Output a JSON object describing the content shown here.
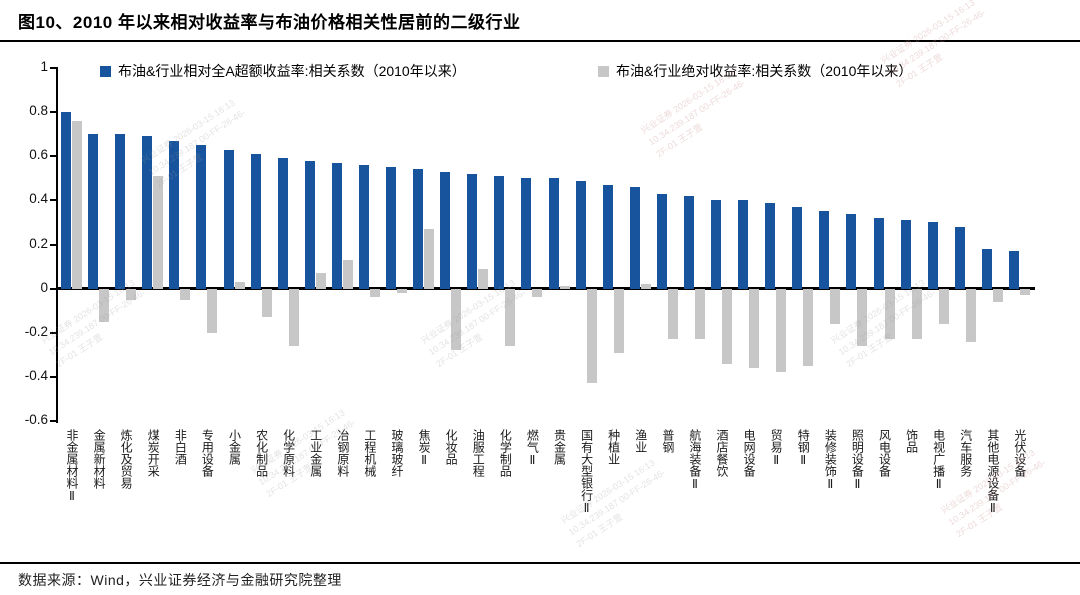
{
  "title": "图10、2010 年以来相对收益率与布油价格相关性居前的二级行业",
  "source_note": "数据来源：Wind，兴业证券经济与金融研究院整理",
  "watermark": {
    "text": "兴业证券 2026-03-15 16:13 10.34.239.187 00-FF-26-46-2F-01 王子萱"
  },
  "colors": {
    "relative_series": "#17549d",
    "absolute_series": "#c7c7c7",
    "axis": "#000000"
  },
  "chart_data": {
    "type": "bar",
    "title": "图10、2010 年以来相对收益率与布油价格相关性居前的二级行业",
    "xlabel": "",
    "ylabel": "",
    "ylim": [
      -0.6,
      1
    ],
    "yticks": [
      1,
      0.8,
      0.6,
      0.4,
      0.2,
      0,
      -0.2,
      -0.4,
      -0.6
    ],
    "grid": false,
    "legend_position": "top",
    "categories": [
      "非金属材料Ⅱ",
      "金属新材料",
      "炼化及贸易",
      "煤炭开采",
      "非白酒",
      "专用设备",
      "小金属",
      "农化制品",
      "化学原料",
      "工业金属",
      "冶钢原料",
      "工程机械",
      "玻璃玻纤",
      "焦炭Ⅱ",
      "化妆品",
      "油服工程",
      "化学制品",
      "燃气Ⅱ",
      "贵金属",
      "国有大型银行Ⅱ",
      "种植业",
      "渔业",
      "普钢",
      "航海装备Ⅱ",
      "酒店餐饮",
      "电网设备",
      "贸易Ⅱ",
      "特钢Ⅱ",
      "装修装饰Ⅱ",
      "照明设备Ⅱ",
      "风电设备",
      "饰品",
      "电视广播Ⅱ",
      "汽车服务",
      "其他电源设备Ⅱ",
      "光伏设备"
    ],
    "series": [
      {
        "name": "布油&行业相对全A超额收益率:相关系数（2010年以来）",
        "color": "#17549d",
        "values": [
          0.8,
          0.7,
          0.7,
          0.69,
          0.67,
          0.65,
          0.63,
          0.61,
          0.59,
          0.58,
          0.57,
          0.56,
          0.55,
          0.54,
          0.53,
          0.52,
          0.51,
          0.5,
          0.5,
          0.49,
          0.47,
          0.46,
          0.43,
          0.42,
          0.4,
          0.4,
          0.39,
          0.37,
          0.35,
          0.34,
          0.32,
          0.31,
          0.3,
          0.28,
          0.18,
          0.17
        ]
      },
      {
        "name": "布油&行业绝对收益率:相关系数（2010年以来）",
        "color": "#c7c7c7",
        "values": [
          0.76,
          -0.15,
          -0.05,
          0.51,
          -0.05,
          -0.2,
          0.03,
          -0.13,
          -0.26,
          0.07,
          0.13,
          -0.04,
          -0.02,
          0.27,
          -0.28,
          0.09,
          -0.26,
          -0.04,
          0.01,
          -0.43,
          -0.29,
          0.02,
          -0.23,
          -0.23,
          -0.34,
          -0.36,
          -0.38,
          -0.35,
          -0.16,
          -0.26,
          -0.23,
          -0.23,
          -0.16,
          -0.24,
          -0.06,
          -0.03
        ]
      }
    ]
  }
}
